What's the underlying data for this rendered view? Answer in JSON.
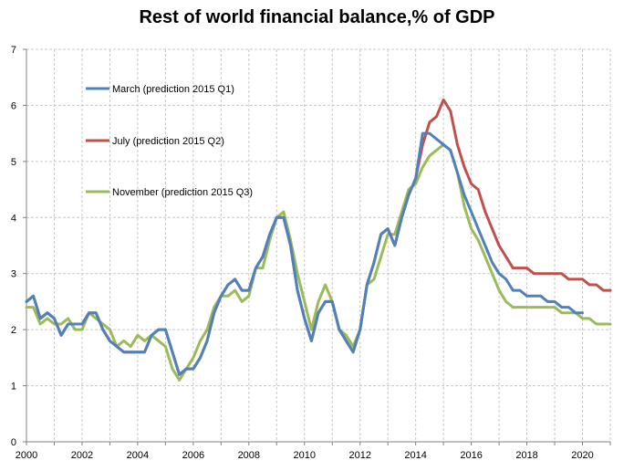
{
  "chart_data": {
    "type": "line",
    "title": "Rest of world financial balance,% of GDP",
    "xlabel": "",
    "ylabel": "",
    "xlim": [
      2000,
      2021
    ],
    "ylim": [
      0,
      7
    ],
    "grid": true,
    "legend_position": "top-left",
    "x_ticks": [
      "2000",
      "2002",
      "2004",
      "2006",
      "2008",
      "2010",
      "2012",
      "2014",
      "2016",
      "2018",
      "2020"
    ],
    "y_ticks": [
      "0",
      "1",
      "2",
      "3",
      "4",
      "5",
      "6",
      "7"
    ],
    "x_tick_values": [
      2000,
      2002,
      2004,
      2006,
      2008,
      2010,
      2012,
      2014,
      2016,
      2018,
      2020
    ],
    "y_tick_values": [
      0,
      1,
      2,
      3,
      4,
      5,
      6,
      7
    ],
    "x": [
      2000.0,
      2000.25,
      2000.5,
      2000.75,
      2001.0,
      2001.25,
      2001.5,
      2001.75,
      2002.0,
      2002.25,
      2002.5,
      2002.75,
      2003.0,
      2003.25,
      2003.5,
      2003.75,
      2004.0,
      2004.25,
      2004.5,
      2004.75,
      2005.0,
      2005.25,
      2005.5,
      2005.75,
      2006.0,
      2006.25,
      2006.5,
      2006.75,
      2007.0,
      2007.25,
      2007.5,
      2007.75,
      2008.0,
      2008.25,
      2008.5,
      2008.75,
      2009.0,
      2009.25,
      2009.5,
      2009.75,
      2010.0,
      2010.25,
      2010.5,
      2010.75,
      2011.0,
      2011.25,
      2011.5,
      2011.75,
      2012.0,
      2012.25,
      2012.5,
      2012.75,
      2013.0,
      2013.25,
      2013.5,
      2013.75,
      2014.0,
      2014.25,
      2014.5,
      2014.75,
      2015.0,
      2015.25,
      2015.5,
      2015.75,
      2016.0,
      2016.25,
      2016.5,
      2016.75,
      2017.0,
      2017.25,
      2017.5,
      2017.75,
      2018.0,
      2018.25,
      2018.5,
      2018.75,
      2019.0,
      2019.25,
      2019.5,
      2019.75,
      2020.0,
      2020.25,
      2020.5,
      2020.75,
      2021.0
    ],
    "series": [
      {
        "name": "March (prediction 2015 Q1)",
        "color": "#4f81bd",
        "values": [
          2.5,
          2.6,
          2.2,
          2.3,
          2.2,
          1.9,
          2.1,
          2.1,
          2.1,
          2.3,
          2.3,
          2.0,
          1.8,
          1.7,
          1.6,
          1.6,
          1.6,
          1.6,
          1.9,
          2.0,
          2.0,
          1.6,
          1.2,
          1.3,
          1.3,
          1.5,
          1.8,
          2.3,
          2.6,
          2.8,
          2.9,
          2.7,
          2.7,
          3.1,
          3.3,
          3.7,
          4.0,
          4.0,
          3.5,
          2.7,
          2.2,
          1.8,
          2.3,
          2.5,
          2.5,
          2.0,
          1.8,
          1.6,
          2.0,
          2.8,
          3.2,
          3.7,
          3.8,
          3.5,
          4.0,
          4.4,
          4.7,
          5.5,
          5.5,
          5.4,
          5.3,
          5.2,
          4.8,
          4.4,
          4.1,
          3.8,
          3.5,
          3.2,
          3.0,
          2.9,
          2.7,
          2.7,
          2.6,
          2.6,
          2.6,
          2.5,
          2.5,
          2.4,
          2.4,
          2.3,
          2.3,
          null,
          null,
          null,
          null
        ]
      },
      {
        "name": "July (prediction 2015 Q2)",
        "color": "#c0504d",
        "values": [
          2.5,
          2.6,
          2.2,
          2.3,
          2.2,
          1.9,
          2.1,
          2.1,
          2.1,
          2.3,
          2.3,
          2.0,
          1.8,
          1.7,
          1.6,
          1.6,
          1.6,
          1.6,
          1.9,
          2.0,
          2.0,
          1.6,
          1.2,
          1.3,
          1.3,
          1.5,
          1.8,
          2.3,
          2.6,
          2.8,
          2.9,
          2.7,
          2.7,
          3.1,
          3.3,
          3.7,
          4.0,
          4.0,
          3.5,
          2.7,
          2.2,
          1.8,
          2.3,
          2.5,
          2.5,
          2.0,
          1.8,
          1.6,
          2.0,
          2.8,
          3.2,
          3.7,
          3.8,
          3.5,
          4.0,
          4.4,
          4.7,
          5.3,
          5.7,
          5.8,
          6.1,
          5.9,
          5.3,
          4.9,
          4.6,
          4.5,
          4.1,
          3.8,
          3.5,
          3.3,
          3.1,
          3.1,
          3.1,
          3.0,
          3.0,
          3.0,
          3.0,
          3.0,
          2.9,
          2.9,
          2.9,
          2.8,
          2.8,
          2.7,
          2.7
        ]
      },
      {
        "name": "November (prediction 2015 Q3)",
        "color": "#9bbb59",
        "values": [
          2.4,
          2.4,
          2.1,
          2.2,
          2.1,
          2.1,
          2.2,
          2.0,
          2.0,
          2.3,
          2.2,
          2.1,
          2.0,
          1.7,
          1.8,
          1.7,
          1.9,
          1.8,
          1.9,
          1.8,
          1.7,
          1.3,
          1.1,
          1.3,
          1.5,
          1.8,
          2.0,
          2.4,
          2.6,
          2.6,
          2.7,
          2.5,
          2.6,
          3.1,
          3.1,
          3.6,
          4.0,
          4.1,
          3.6,
          3.0,
          2.5,
          2.0,
          2.5,
          2.8,
          2.5,
          2.0,
          1.9,
          1.7,
          2.0,
          2.8,
          2.9,
          3.3,
          3.7,
          3.7,
          4.1,
          4.5,
          4.6,
          4.9,
          5.1,
          5.2,
          5.3,
          5.2,
          4.8,
          4.2,
          3.8,
          3.6,
          3.3,
          3.0,
          2.7,
          2.5,
          2.4,
          2.4,
          2.4,
          2.4,
          2.4,
          2.4,
          2.4,
          2.3,
          2.3,
          2.3,
          2.2,
          2.2,
          2.1,
          2.1,
          2.1
        ]
      }
    ]
  }
}
